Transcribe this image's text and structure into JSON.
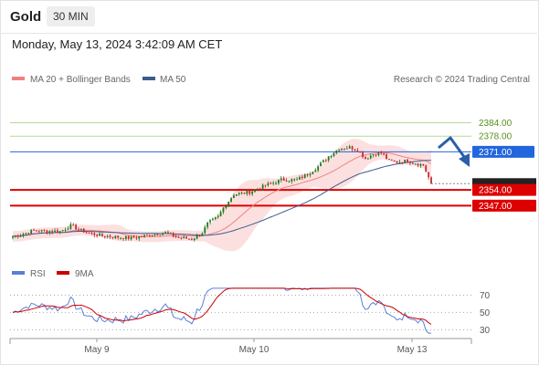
{
  "header": {
    "title": "Gold",
    "timeframe": "30 MIN",
    "datetime": "Monday, May 13, 2024 3:42:09 AM CET"
  },
  "credit": "Research © 2024 Trading Central",
  "colors": {
    "candle_up": "#1f7a1f",
    "candle_down": "#c62828",
    "ma20": "#f08080",
    "bollinger_fill": "#fbdada",
    "ma50": "#3c5b8f",
    "rsi": "#5b7fd9",
    "rsi_ma": "#cc0000",
    "resistance_label": "#5a8f1a",
    "pivot": "#2266dd",
    "support": "#dd0000",
    "arrow": "#2b5fa8"
  },
  "chart_data": [
    {
      "type": "candlestick",
      "legend": [
        "MA 20 + Bollinger Bands",
        "MA 50"
      ],
      "ylim": [
        2328,
        2396
      ],
      "x_labels": [
        "May 9",
        "May 10",
        "May 13"
      ],
      "levels": [
        {
          "value": 2384.0,
          "label": "2384.00",
          "role": "resistance"
        },
        {
          "value": 2378.0,
          "label": "2378.00",
          "role": "resistance"
        },
        {
          "value": 2371.0,
          "label": "2371.00",
          "role": "pivot"
        },
        {
          "value": 2354.0,
          "label": "2354.00",
          "role": "support"
        },
        {
          "value": 2347.0,
          "label": "2347.00",
          "role": "support"
        }
      ],
      "last_price": 2356.8,
      "forecast": "down"
    },
    {
      "type": "line",
      "legend": [
        "RSI",
        "9MA"
      ],
      "ylim": [
        24,
        80
      ],
      "yticks": [
        70,
        50,
        30
      ]
    }
  ]
}
